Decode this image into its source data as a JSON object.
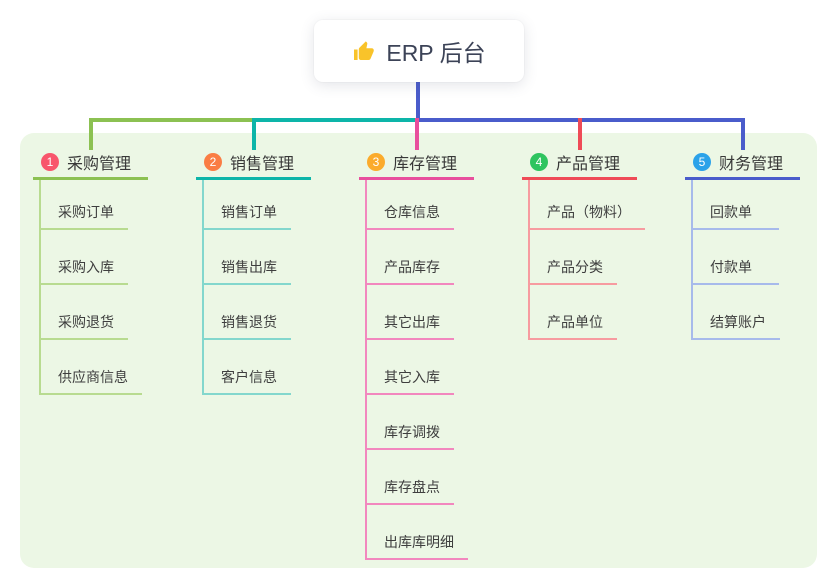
{
  "root": {
    "label": "ERP 后台",
    "icon": "thumbs-up",
    "icon_color": "#f9c32a",
    "stem_color": "#4a5ccb"
  },
  "panel": {
    "background": "#ecf7e5"
  },
  "branches": [
    {
      "badge": "1",
      "badge_color": "#f8566c",
      "label": "采购管理",
      "line_color": "#8cc152",
      "child_line_color": "#b8db90",
      "children": [
        "采购订单",
        "采购入库",
        "采购退货",
        "供应商信息"
      ]
    },
    {
      "badge": "2",
      "badge_color": "#fa7d44",
      "label": "销售管理",
      "line_color": "#0db5a9",
      "child_line_color": "#83d7cd",
      "children": [
        "销售订单",
        "销售出库",
        "销售退货",
        "客户信息"
      ]
    },
    {
      "badge": "3",
      "badge_color": "#fbab2c",
      "label": "库存管理",
      "line_color": "#e84f9d",
      "child_line_color": "#f287be",
      "children": [
        "仓库信息",
        "产品库存",
        "其它出库",
        "其它入库",
        "库存调拨",
        "库存盘点",
        "出库库明细"
      ]
    },
    {
      "badge": "4",
      "badge_color": "#2ec45f",
      "label": "产品管理",
      "line_color": "#ef4b57",
      "child_line_color": "#f79ba0",
      "children": [
        "产品（物料）",
        "产品分类",
        "产品单位"
      ]
    },
    {
      "badge": "5",
      "badge_color": "#2ba2e9",
      "label": "财务管理",
      "line_color": "#4a5ccb",
      "child_line_color": "#a7baeb",
      "children": [
        "回款单",
        "付款单",
        "结算账户"
      ]
    }
  ]
}
